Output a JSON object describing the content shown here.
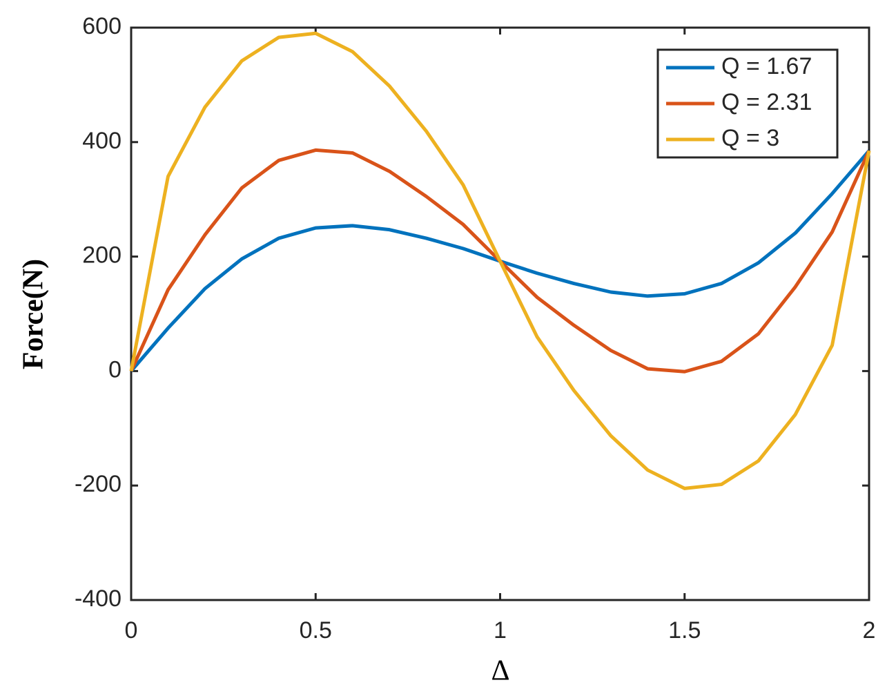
{
  "chart_data": {
    "type": "line",
    "x_label": "Δ",
    "y_label": "Force(N)",
    "x": [
      0,
      0.1,
      0.2,
      0.3,
      0.4,
      0.5,
      0.6,
      0.7,
      0.8,
      0.9,
      1.0,
      1.1,
      1.2,
      1.3,
      1.4,
      1.5,
      1.6,
      1.7,
      1.8,
      1.9,
      2.0
    ],
    "series": [
      {
        "name": "Q = 1.67",
        "color": "#0072BD",
        "values": [
          0,
          75,
          144,
          196,
          232,
          250,
          254,
          247,
          232,
          214,
          192,
          171,
          153,
          138,
          131,
          135,
          153,
          189,
          241,
          310,
          385
        ]
      },
      {
        "name": "Q = 2.31",
        "color": "#D95319",
        "values": [
          0,
          142,
          238,
          320,
          368,
          386,
          381,
          349,
          305,
          256,
          192,
          129,
          80,
          36,
          4,
          -1,
          17,
          65,
          147,
          243,
          385
        ]
      },
      {
        "name": "Q = 3",
        "color": "#EDB120",
        "values": [
          0,
          340,
          461,
          542,
          583,
          590,
          558,
          498,
          419,
          325,
          192,
          60,
          -34,
          -113,
          -173,
          -205,
          -198,
          -157,
          -76,
          45,
          385
        ]
      }
    ],
    "xlim": [
      0,
      2
    ],
    "xticks": [
      0,
      0.5,
      1,
      1.5,
      2
    ],
    "ylim": [
      -400,
      600
    ],
    "yticks": [
      -400,
      -200,
      0,
      200,
      400,
      600
    ],
    "grid": false,
    "legend": "upper right"
  }
}
